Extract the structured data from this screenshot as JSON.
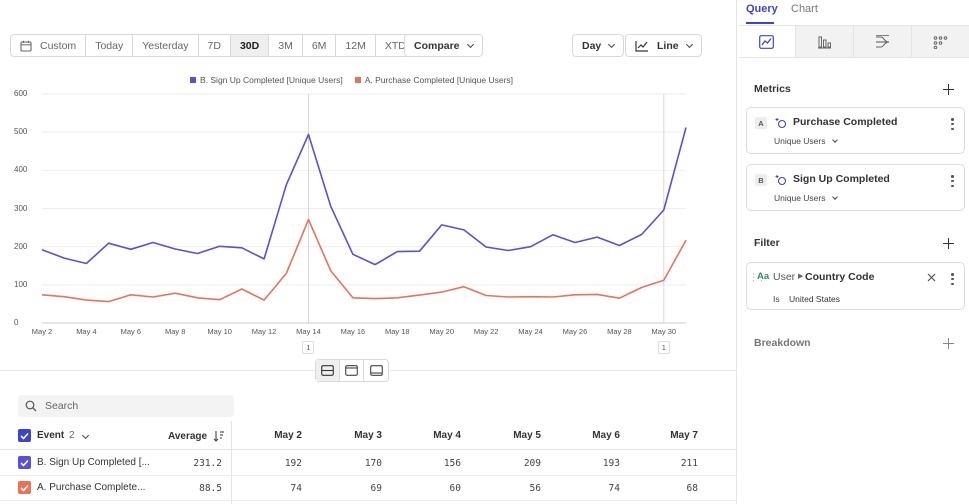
{
  "toolbar": {
    "date_ranges": [
      "Custom",
      "Today",
      "Yesterday",
      "7D",
      "30D",
      "3M",
      "6M",
      "12M",
      "XTD"
    ],
    "active_range": "30D",
    "compare_label": "Compare",
    "interval_label": "Day",
    "chart_type_label": "Line"
  },
  "chart_data": {
    "type": "line",
    "title": "",
    "xlabel": "",
    "ylabel": "",
    "ylim": [
      0,
      600
    ],
    "yticks": [
      0,
      100,
      200,
      300,
      400,
      500,
      600
    ],
    "x": [
      "May 2",
      "May 3",
      "May 4",
      "May 5",
      "May 6",
      "May 7",
      "May 8",
      "May 9",
      "May 10",
      "May 11",
      "May 12",
      "May 13",
      "May 14",
      "May 15",
      "May 16",
      "May 17",
      "May 18",
      "May 19",
      "May 20",
      "May 21",
      "May 22",
      "May 23",
      "May 24",
      "May 25",
      "May 26",
      "May 27",
      "May 28",
      "May 29",
      "May 30",
      "May 31"
    ],
    "xtick_labels": [
      "May 2",
      "May 4",
      "May 6",
      "May 8",
      "May 10",
      "May 12",
      "May 14",
      "May 16",
      "May 18",
      "May 20",
      "May 22",
      "May 24",
      "May 26",
      "May 28",
      "May 30"
    ],
    "annotations": [
      {
        "x": "May 14",
        "label": "1"
      },
      {
        "x": "May 30",
        "label": "1"
      }
    ],
    "series": [
      {
        "name": "B. Sign Up Completed [Unique Users]",
        "color": "#5b4fd6",
        "values": [
          192,
          170,
          156,
          209,
          193,
          211,
          194,
          182,
          201,
          197,
          168,
          362,
          494,
          306,
          180,
          153,
          187,
          188,
          257,
          244,
          199,
          190,
          200,
          231,
          211,
          225,
          203,
          232,
          296,
          512
        ]
      },
      {
        "name": "A. Purchase Completed [Unique Users]",
        "color": "#e8735a",
        "values": [
          74,
          69,
          60,
          56,
          74,
          68,
          78,
          66,
          61,
          89,
          60,
          130,
          271,
          137,
          66,
          64,
          66,
          73,
          81,
          95,
          72,
          68,
          69,
          68,
          74,
          75,
          65,
          93,
          112,
          217
        ]
      }
    ]
  },
  "view_toggle": [
    "split-view",
    "chart-view",
    "table-view"
  ],
  "search": {
    "placeholder": "Search"
  },
  "table": {
    "event_header": "Event",
    "event_count": "2",
    "average_header": "Average",
    "date_headers": [
      "May 2",
      "May 3",
      "May 4",
      "May 5",
      "May 6",
      "May 7"
    ],
    "rows": [
      {
        "name": "B. Sign Up Completed [...",
        "color": "#5b4fd6",
        "average": "231.2",
        "values": [
          "192",
          "170",
          "156",
          "209",
          "193",
          "211"
        ]
      },
      {
        "name": "A. Purchase Complete...",
        "color": "#e8735a",
        "average": "88.5",
        "values": [
          "74",
          "69",
          "60",
          "56",
          "74",
          "68"
        ]
      }
    ]
  },
  "side": {
    "tabs": [
      "Query",
      "Chart"
    ],
    "metrics_title": "Metrics",
    "metrics": [
      {
        "badge": "A",
        "name": "Purchase Completed",
        "measure": "Unique Users"
      },
      {
        "badge": "B",
        "name": "Sign Up Completed",
        "measure": "Unique Users"
      }
    ],
    "filter_title": "Filter",
    "filter": {
      "type_icon": "Aa",
      "entity": "User",
      "property": "Country Code",
      "operator": "Is",
      "value": "United States"
    },
    "breakdown_title": "Breakdown"
  }
}
